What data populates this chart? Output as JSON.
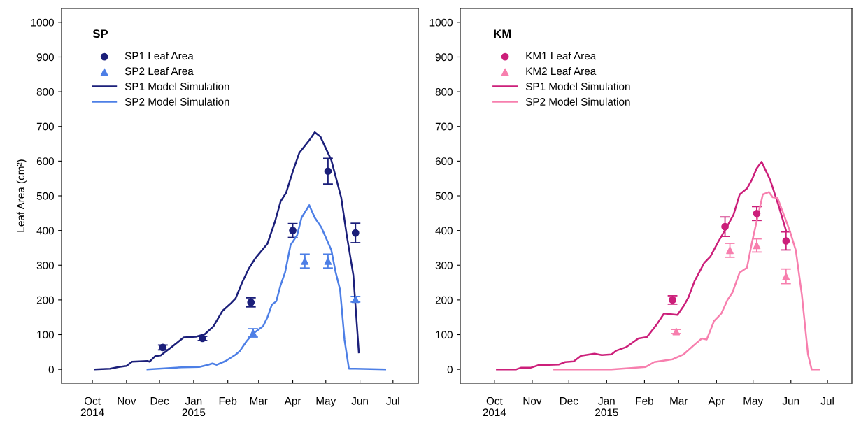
{
  "chart_data": [
    {
      "type": "line",
      "legend_title": "SP",
      "ylabel": "Leaf Area (cm²)",
      "legend": "top left",
      "grid": false,
      "xlim": [
        "2014-09-03",
        "2015-07-24"
      ],
      "ylim": [
        -40,
        1040
      ],
      "yticks": [
        0,
        100,
        200,
        300,
        400,
        500,
        600,
        700,
        800,
        900,
        1000
      ],
      "xticks": [
        {
          "value": "2014-10-01",
          "label": "Oct\n2014"
        },
        {
          "value": "2014-11-01",
          "label": "Nov"
        },
        {
          "value": "2014-12-01",
          "label": "Dec"
        },
        {
          "value": "2015-01-01",
          "label": "Jan\n2015"
        },
        {
          "value": "2015-02-01",
          "label": "Feb"
        },
        {
          "value": "2015-03-01",
          "label": "Mar"
        },
        {
          "value": "2015-04-01",
          "label": "Apr"
        },
        {
          "value": "2015-05-01",
          "label": "May"
        },
        {
          "value": "2015-06-01",
          "label": "Jun"
        },
        {
          "value": "2015-07-01",
          "label": "Jul"
        }
      ],
      "series": [
        {
          "name": "SP1 Leaf Area",
          "type": "scatter",
          "marker": "circle",
          "color": "#1b1f7a",
          "x": [
            "2014-12-04",
            "2015-01-09",
            "2015-02-22",
            "2015-04-01",
            "2015-05-03",
            "2015-05-28"
          ],
          "values": [
            63,
            89,
            193,
            400,
            571,
            393
          ],
          "errors": [
            7,
            6,
            13,
            20,
            37,
            28
          ]
        },
        {
          "name": "SP2 Leaf Area",
          "type": "scatter",
          "marker": "triangle",
          "color": "#4d7fe6",
          "x": [
            "2015-02-24",
            "2015-04-12",
            "2015-05-03",
            "2015-05-28"
          ],
          "values": [
            105,
            312,
            312,
            202
          ],
          "errors": [
            12,
            20,
            20,
            8
          ]
        },
        {
          "name": "SP1 Model Simulation",
          "type": "line",
          "color": "#1b1f7a",
          "x": [
            "2014-10-03",
            "2014-10-17",
            "2014-10-25",
            "2014-11-01",
            "2014-11-06",
            "2014-11-20",
            "2014-11-22",
            "2014-11-27",
            "2014-12-02",
            "2014-12-13",
            "2014-12-23",
            "2015-01-03",
            "2015-01-11",
            "2015-01-19",
            "2015-01-27",
            "2015-02-04",
            "2015-02-08",
            "2015-02-14",
            "2015-02-20",
            "2015-02-26",
            "2015-03-09",
            "2015-03-16",
            "2015-03-21",
            "2015-03-26",
            "2015-04-01",
            "2015-04-07",
            "2015-04-16",
            "2015-04-21",
            "2015-04-26",
            "2015-05-06",
            "2015-05-15",
            "2015-05-20",
            "2015-05-26",
            "2015-05-31"
          ],
          "values": [
            0,
            2,
            7,
            10,
            22,
            24,
            22,
            38,
            40,
            67,
            92,
            94,
            101,
            124,
            168,
            191,
            204,
            250,
            290,
            320,
            362,
            427,
            484,
            509,
            570,
            624,
            660,
            683,
            671,
            603,
            495,
            387,
            272,
            49
          ]
        },
        {
          "name": "SP2 Model Simulation",
          "type": "line",
          "color": "#4d7fe6",
          "x": [
            "2014-11-20",
            "2014-12-21",
            "2015-01-06",
            "2015-01-14",
            "2015-01-18",
            "2015-01-22",
            "2015-01-30",
            "2015-02-08",
            "2015-02-12",
            "2015-02-18",
            "2015-02-24",
            "2015-03-05",
            "2015-03-09",
            "2015-03-13",
            "2015-03-17",
            "2015-03-21",
            "2015-03-25",
            "2015-03-30",
            "2015-04-05",
            "2015-04-09",
            "2015-04-16",
            "2015-04-21",
            "2015-04-27",
            "2015-05-06",
            "2015-05-10",
            "2015-05-14",
            "2015-05-18",
            "2015-05-22",
            "2015-06-24"
          ],
          "values": [
            0,
            6,
            7,
            13,
            17,
            13,
            24,
            42,
            53,
            81,
            103,
            124,
            150,
            186,
            196,
            243,
            279,
            358,
            387,
            437,
            473,
            437,
            409,
            344,
            279,
            229,
            85,
            2,
            0
          ]
        }
      ]
    },
    {
      "type": "line",
      "legend_title": "KM",
      "legend": "top left",
      "grid": false,
      "xlim": [
        "2014-09-03",
        "2015-07-21"
      ],
      "ylim": [
        -40,
        1040
      ],
      "yticks": [
        0,
        100,
        200,
        300,
        400,
        500,
        600,
        700,
        800,
        900,
        1000
      ],
      "xticks": [
        {
          "value": "2014-10-01",
          "label": "Oct\n2014"
        },
        {
          "value": "2014-11-01",
          "label": "Nov"
        },
        {
          "value": "2014-12-01",
          "label": "Dec"
        },
        {
          "value": "2015-01-01",
          "label": "Jan\n2015"
        },
        {
          "value": "2015-02-01",
          "label": "Feb"
        },
        {
          "value": "2015-03-01",
          "label": "Mar"
        },
        {
          "value": "2015-04-01",
          "label": "Apr"
        },
        {
          "value": "2015-05-01",
          "label": "May"
        },
        {
          "value": "2015-06-01",
          "label": "Jun"
        },
        {
          "value": "2015-07-01",
          "label": "Jul"
        }
      ],
      "series": [
        {
          "name": "KM1 Leaf Area",
          "type": "scatter",
          "marker": "circle",
          "color": "#cc1f7a",
          "x": [
            "2015-02-24",
            "2015-04-08",
            "2015-05-04",
            "2015-05-28"
          ],
          "values": [
            200,
            411,
            449,
            370
          ],
          "errors": [
            12,
            28,
            20,
            26
          ]
        },
        {
          "name": "KM2 Leaf Area",
          "type": "scatter",
          "marker": "triangle",
          "color": "#f77fae",
          "x": [
            "2015-02-27",
            "2015-04-12",
            "2015-05-04",
            "2015-05-28"
          ],
          "values": [
            109,
            343,
            357,
            268
          ],
          "errors": [
            6,
            20,
            19,
            21
          ]
        },
        {
          "name": "SP1 Model Simulation",
          "type": "line",
          "color": "#cc1f7a",
          "x": [
            "2014-10-03",
            "2014-10-19",
            "2014-10-23",
            "2014-10-31",
            "2014-11-06",
            "2014-11-23",
            "2014-11-28",
            "2014-12-05",
            "2014-12-11",
            "2014-12-22",
            "2014-12-28",
            "2015-01-05",
            "2015-01-09",
            "2015-01-17",
            "2015-01-23",
            "2015-01-27",
            "2015-02-03",
            "2015-02-11",
            "2015-02-17",
            "2015-02-28",
            "2015-03-05",
            "2015-03-09",
            "2015-03-14",
            "2015-03-22",
            "2015-03-27",
            "2015-04-03",
            "2015-04-09",
            "2015-04-15",
            "2015-04-20",
            "2015-04-26",
            "2015-04-30",
            "2015-05-04",
            "2015-05-08",
            "2015-05-15",
            "2015-05-22",
            "2015-05-28"
          ],
          "values": [
            0,
            0,
            5,
            5,
            12,
            14,
            21,
            23,
            39,
            45,
            41,
            43,
            54,
            64,
            79,
            89,
            93,
            129,
            161,
            157,
            182,
            207,
            254,
            307,
            325,
            371,
            407,
            446,
            504,
            521,
            546,
            579,
            598,
            546,
            471,
            400
          ]
        },
        {
          "name": "SP2 Model Simulation",
          "type": "line",
          "color": "#f77fae",
          "x": [
            "2014-11-19",
            "2015-01-05",
            "2015-02-02",
            "2015-02-09",
            "2015-02-24",
            "2015-03-05",
            "2015-03-14",
            "2015-03-20",
            "2015-03-24",
            "2015-03-30",
            "2015-04-05",
            "2015-04-10",
            "2015-04-14",
            "2015-04-20",
            "2015-04-26",
            "2015-04-30",
            "2015-05-05",
            "2015-05-09",
            "2015-05-14",
            "2015-05-17",
            "2015-05-21",
            "2015-05-25",
            "2015-05-31",
            "2015-06-05",
            "2015-06-10",
            "2015-06-15",
            "2015-06-18",
            "2015-06-24"
          ],
          "values": [
            0,
            0,
            7,
            21,
            29,
            43,
            71,
            89,
            86,
            139,
            161,
            200,
            221,
            279,
            293,
            364,
            443,
            504,
            511,
            496,
            494,
            457,
            400,
            343,
            214,
            43,
            0,
            0
          ]
        }
      ]
    }
  ]
}
